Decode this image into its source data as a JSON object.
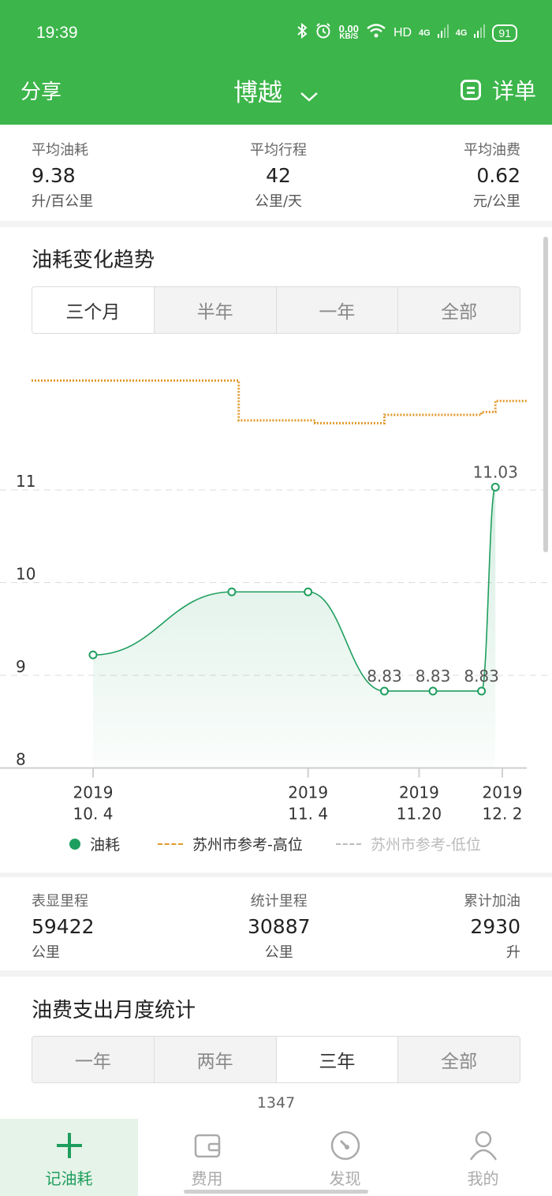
{
  "status_bar": {
    "time": "19:39",
    "net_speed_value": "0.00",
    "net_speed_unit": "KB/S",
    "hd": "HD",
    "sim1": "4G",
    "sim2": "4G",
    "battery": "91"
  },
  "nav": {
    "share": "分享",
    "title": "博越",
    "detail": "详单"
  },
  "summary": {
    "items": [
      {
        "label": "平均油耗",
        "value": "9.38",
        "unit": "升/百公里"
      },
      {
        "label": "平均行程",
        "value": "42",
        "unit": "公里/天"
      },
      {
        "label": "平均油费",
        "value": "0.62",
        "unit": "元/公里"
      }
    ]
  },
  "trend": {
    "title": "油耗变化趋势",
    "ranges": [
      "三个月",
      "半年",
      "一年",
      "全部"
    ],
    "selected": "三个月"
  },
  "chart_data": {
    "type": "line",
    "y_ticks": [
      "11",
      "10",
      "9",
      "8"
    ],
    "ylim": [
      8,
      11.6
    ],
    "x_ticks": [
      {
        "year": "2019",
        "date": "10. 4"
      },
      {
        "year": "2019",
        "date": "11. 4"
      },
      {
        "year": "2019",
        "date": "11.20"
      },
      {
        "year": "2019",
        "date": "12. 2"
      }
    ],
    "series": [
      {
        "name": "油耗",
        "color": "#1e9e5e",
        "points": [
          {
            "x": "2019-10-04",
            "y": 9.22,
            "label": ""
          },
          {
            "x": "2019-10-24",
            "y": 9.9,
            "label": ""
          },
          {
            "x": "2019-11-04",
            "y": 9.9,
            "label": ""
          },
          {
            "x": "2019-11-15",
            "y": 8.83,
            "label": "8.83"
          },
          {
            "x": "2019-11-22",
            "y": 8.83,
            "label": "8.83"
          },
          {
            "x": "2019-11-29",
            "y": 8.83,
            "label": "8.83"
          },
          {
            "x": "2019-12-01",
            "y": 11.03,
            "label": "11.03"
          }
        ]
      },
      {
        "name": "苏州市参考-高位",
        "color": "#e09a2e",
        "style": "step",
        "points": [
          {
            "x": "2019-09-30",
            "y": 12.18
          },
          {
            "x": "2019-10-25",
            "y": 11.75
          },
          {
            "x": "2019-11-05",
            "y": 11.72
          },
          {
            "x": "2019-11-15",
            "y": 11.81
          },
          {
            "x": "2019-11-29",
            "y": 11.84
          },
          {
            "x": "2019-12-01",
            "y": 11.96
          },
          {
            "x": "2019-12-04",
            "y": 11.96
          }
        ]
      },
      {
        "name": "苏州市参考-低位",
        "color": "#bbbbbb"
      }
    ]
  },
  "legend": {
    "items": [
      "油耗",
      "苏州市参考-高位",
      "苏州市参考-低位"
    ]
  },
  "mileage": {
    "items": [
      {
        "label": "表显里程",
        "value": "59422",
        "unit": "公里"
      },
      {
        "label": "统计里程",
        "value": "30887",
        "unit": "公里"
      },
      {
        "label": "累计加油",
        "value": "2930",
        "unit": "升"
      }
    ]
  },
  "monthly": {
    "title": "油费支出月度统计",
    "ranges": [
      "一年",
      "两年",
      "三年",
      "全部"
    ],
    "selected": "三年",
    "peek_value": "1347"
  },
  "tabs": [
    {
      "label": "记油耗",
      "icon": "plus-icon",
      "active": true
    },
    {
      "label": "费用",
      "icon": "wallet-icon",
      "active": false
    },
    {
      "label": "发现",
      "icon": "compass-icon",
      "active": false
    },
    {
      "label": "我的",
      "icon": "user-icon",
      "active": false
    }
  ],
  "colors": {
    "brand": "#3cb54a",
    "line": "#1e9e5e",
    "reference_high": "#e09a2e"
  }
}
